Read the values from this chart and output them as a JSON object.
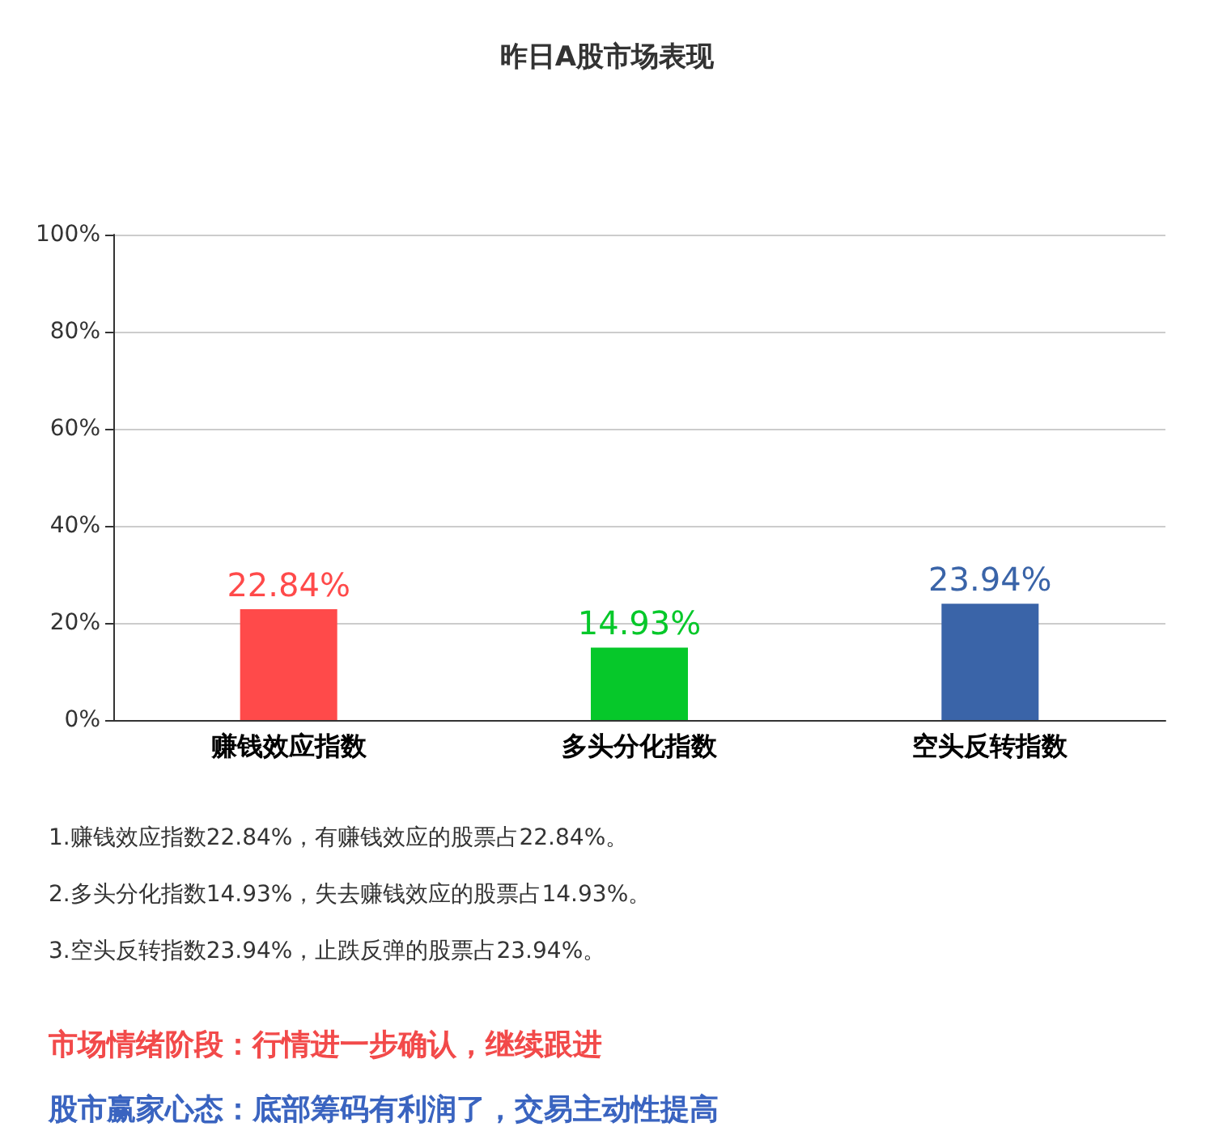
{
  "chart_data": {
    "type": "bar",
    "title": "昨日A股市场表现",
    "categories": [
      "赚钱效应指数",
      "多头分化指数",
      "空头反转指数"
    ],
    "values": [
      22.84,
      14.93,
      23.94
    ],
    "colors": [
      "#ff4a4a",
      "#06c82a",
      "#3a64a8"
    ],
    "value_labels": [
      "22.84%",
      "14.93%",
      "23.94%"
    ],
    "ylim": [
      0,
      100
    ],
    "yticks": [
      {
        "value": 0,
        "label": "0%"
      },
      {
        "value": 20,
        "label": "20%"
      },
      {
        "value": 40,
        "label": "40%"
      },
      {
        "value": 60,
        "label": "60%"
      },
      {
        "value": 80,
        "label": "80%"
      },
      {
        "value": 100,
        "label": "100%"
      }
    ],
    "grid": "y",
    "annotations": [
      "1.赚钱效应指数22.84%，有赚钱效应的股票占22.84%。",
      "2.多头分化指数14.93%，失去赚钱效应的股票占14.93%。",
      "3.空头反转指数23.94%，止跌反弹的股票占23.94%。",
      "市场情绪阶段：行情进一步确认，继续跟进",
      "股市赢家心态：底部筹码有利润了，交易主动性提高"
    ]
  }
}
